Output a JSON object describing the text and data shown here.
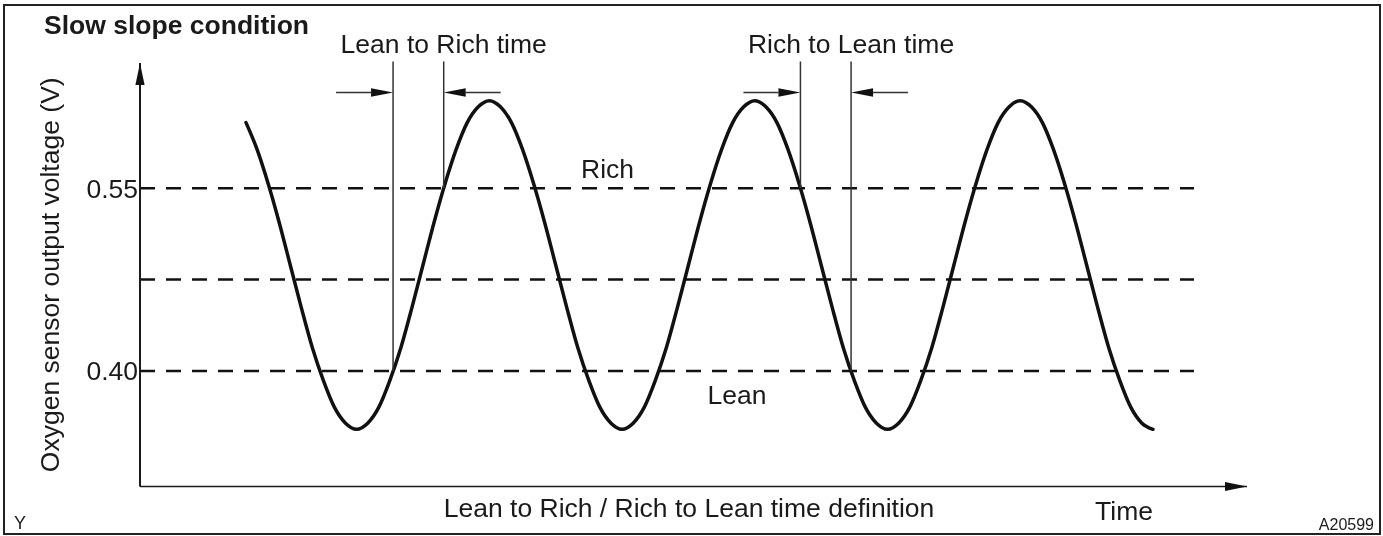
{
  "chart_data": {
    "type": "line",
    "title": "Slow slope condition",
    "ylabel": "Oxygen sensor output voltage (V)",
    "xlabel": "Time",
    "annotations": [
      "Lean to Rich time",
      "Rich to Lean time",
      "Lean to Rich / Rich to Lean time definition",
      "Y",
      "A20599"
    ],
    "categories": [
      null,
      null,
      null,
      null,
      null,
      null,
      null,
      null,
      null,
      null,
      null,
      null,
      null,
      null,
      null,
      null,
      null,
      null,
      null,
      null,
      null,
      null,
      null,
      null,
      null,
      null,
      null,
      null,
      null,
      null,
      null,
      null,
      null,
      null,
      null,
      null,
      null,
      null,
      null,
      null,
      null,
      null,
      null,
      null,
      null,
      null,
      null,
      null,
      null,
      null,
      null,
      null,
      null,
      null,
      null,
      null,
      null,
      null,
      null,
      null,
      null,
      null,
      null,
      null,
      null,
      null,
      null,
      null,
      null,
      null,
      null,
      null,
      null,
      null,
      null,
      null,
      null,
      null,
      null,
      null,
      null,
      null,
      null
    ],
    "values": [
      0.604,
      0.582,
      0.554,
      0.522,
      0.487,
      0.452,
      0.419,
      0.392,
      0.37,
      0.357,
      0.352,
      0.357,
      0.37,
      0.392,
      0.419,
      0.452,
      0.487,
      0.522,
      0.554,
      0.582,
      0.604,
      0.617,
      0.622,
      0.617,
      0.604,
      0.582,
      0.554,
      0.522,
      0.487,
      0.452,
      0.419,
      0.392,
      0.37,
      0.357,
      0.352,
      0.357,
      0.37,
      0.392,
      0.419,
      0.452,
      0.487,
      0.522,
      0.554,
      0.582,
      0.604,
      0.617,
      0.622,
      0.617,
      0.604,
      0.582,
      0.554,
      0.522,
      0.487,
      0.452,
      0.419,
      0.392,
      0.37,
      0.357,
      0.352,
      0.357,
      0.37,
      0.392,
      0.419,
      0.452,
      0.487,
      0.522,
      0.554,
      0.582,
      0.604,
      0.617,
      0.622,
      0.617,
      0.604,
      0.582,
      0.554,
      0.522,
      0.487,
      0.452,
      0.419,
      0.392,
      0.37,
      0.357,
      0.352
    ],
    "color": "#111111",
    "ylim": [
      0.305,
      0.653
    ],
    "yticks": [
      {
        "value": 0.4,
        "label": "0.40"
      },
      0.55
    ],
    "ref_lines": [
      {
        "axis": "y",
        "value": 0.55,
        "label": "Rich",
        "line_style": "dashed",
        "color": "#111111"
      },
      {
        "axis": "y",
        "value": 0.475,
        "line_style": "dashed",
        "color": "#111111"
      },
      {
        "axis": "y",
        "value": 0.4,
        "label": "Lean",
        "line_style": "dashed",
        "color": "#111111"
      }
    ],
    "tick_labels": "y"
  }
}
